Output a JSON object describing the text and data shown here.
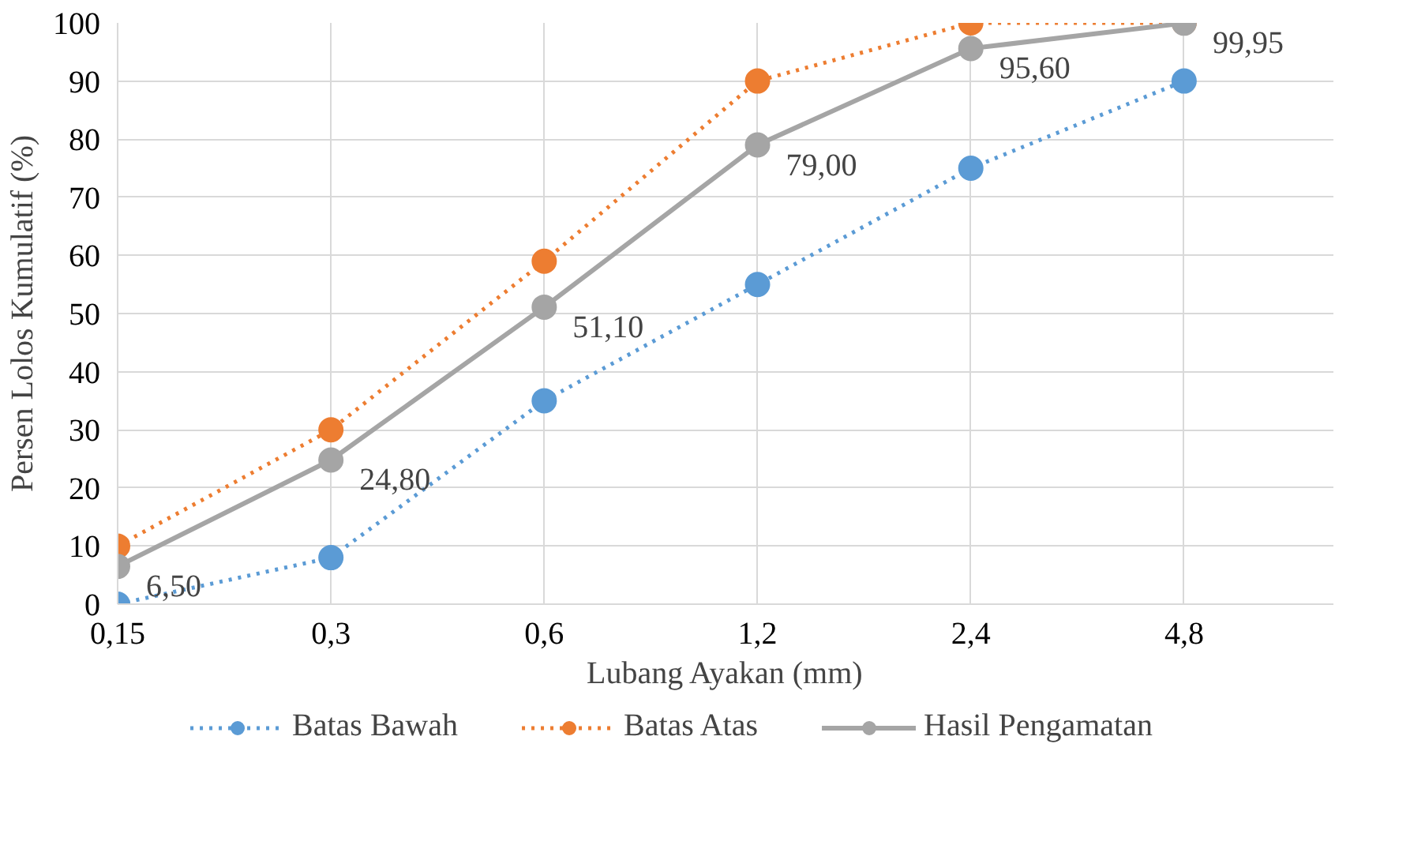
{
  "chart_data": {
    "type": "line",
    "xlabel": "Lubang Ayakan (mm)",
    "ylabel": "Persen Lolos Kumulatif (%)",
    "categories": [
      "0,15",
      "0,3",
      "0,6",
      "1,2",
      "2,4",
      "4,8"
    ],
    "series": [
      {
        "name": "Batas Bawah",
        "color": "#5b9bd5",
        "line_style": "dotted",
        "values": [
          0,
          8,
          35,
          55,
          75,
          90
        ]
      },
      {
        "name": "Batas Atas",
        "color": "#ed7d31",
        "line_style": "dotted",
        "values": [
          10,
          30,
          59,
          90,
          100,
          100
        ]
      },
      {
        "name": "Hasil Pengamatan",
        "color": "#a5a5a5",
        "line_style": "solid",
        "values": [
          6.5,
          24.8,
          51.1,
          79.0,
          95.6,
          99.95
        ],
        "value_labels": [
          "6,50",
          "24,80",
          "51,10",
          "79,00",
          "95,60",
          "99,95"
        ]
      }
    ],
    "ylim": [
      0,
      100
    ],
    "yticks": [
      0,
      10,
      20,
      30,
      40,
      50,
      60,
      70,
      80,
      90,
      100
    ],
    "grid": true,
    "legend": "bottom",
    "marker": "circle"
  }
}
